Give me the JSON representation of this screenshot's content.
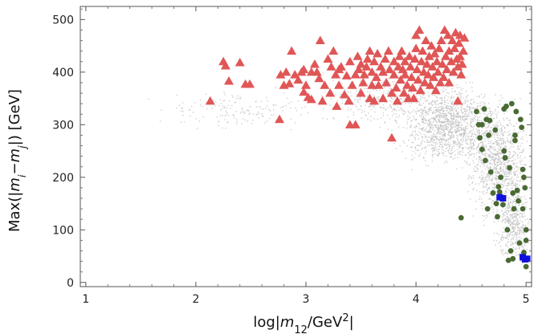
{
  "chart_data": {
    "type": "scatter",
    "xlabel": "log|m12/GeV2|",
    "ylabel": "Max(|mi−mj|) [GeV]",
    "xlim": [
      0.95,
      5.05
    ],
    "ylim": [
      -8,
      525
    ],
    "x_ticks": [
      1,
      2,
      3,
      4,
      5
    ],
    "y_ticks": [
      0,
      100,
      200,
      300,
      400,
      500
    ],
    "grid": false,
    "legend": "none",
    "background_density": {
      "description_color": "#bdbdbd",
      "regions": [
        {
          "x_center": 4.3,
          "y_center": 300,
          "x_spread": 0.35,
          "y_spread": 60,
          "weight": 0.42
        },
        {
          "x_center": 4.75,
          "y_center": 230,
          "x_spread": 0.22,
          "y_spread": 85,
          "weight": 0.3
        },
        {
          "x_center": 4.88,
          "y_center": 110,
          "x_spread": 0.12,
          "y_spread": 55,
          "weight": 0.13
        },
        {
          "x_center": 3.7,
          "y_center": 350,
          "x_spread": 0.45,
          "y_spread": 40,
          "weight": 0.1
        },
        {
          "x_center": 2.4,
          "y_center": 330,
          "x_spread": 0.6,
          "y_spread": 30,
          "weight": 0.05
        }
      ],
      "count": 3200
    },
    "series": [
      {
        "marker": "triangle",
        "color": "#e05656",
        "points": [
          [
            2.13,
            345
          ],
          [
            2.25,
            420
          ],
          [
            2.27,
            412
          ],
          [
            2.3,
            383
          ],
          [
            2.4,
            418
          ],
          [
            2.45,
            377
          ],
          [
            2.49,
            377
          ],
          [
            2.76,
            310
          ],
          [
            2.77,
            395
          ],
          [
            2.8,
            375
          ],
          [
            2.82,
            400
          ],
          [
            2.85,
            378
          ],
          [
            2.87,
            440
          ],
          [
            2.9,
            395
          ],
          [
            2.93,
            385
          ],
          [
            2.96,
            400
          ],
          [
            2.98,
            405
          ],
          [
            2.98,
            362
          ],
          [
            3.0,
            375
          ],
          [
            3.02,
            352
          ],
          [
            3.05,
            348
          ],
          [
            3.05,
            400
          ],
          [
            3.08,
            415
          ],
          [
            3.1,
            400
          ],
          [
            3.12,
            388
          ],
          [
            3.13,
            460
          ],
          [
            3.15,
            345
          ],
          [
            3.17,
            375
          ],
          [
            3.2,
            425
          ],
          [
            3.22,
            360
          ],
          [
            3.23,
            410
          ],
          [
            3.25,
            440
          ],
          [
            3.27,
            395
          ],
          [
            3.28,
            335
          ],
          [
            3.3,
            375
          ],
          [
            3.3,
            405
          ],
          [
            3.32,
            410
          ],
          [
            3.35,
            357
          ],
          [
            3.37,
            393
          ],
          [
            3.39,
            345
          ],
          [
            3.4,
            420
          ],
          [
            3.4,
            300
          ],
          [
            3.42,
            375
          ],
          [
            3.45,
            395
          ],
          [
            3.45,
            300
          ],
          [
            3.47,
            430
          ],
          [
            3.48,
            405
          ],
          [
            3.5,
            360
          ],
          [
            3.5,
            415
          ],
          [
            3.52,
            380
          ],
          [
            3.53,
            395
          ],
          [
            3.55,
            410
          ],
          [
            3.56,
            425
          ],
          [
            3.58,
            440
          ],
          [
            3.58,
            350
          ],
          [
            3.6,
            375
          ],
          [
            3.6,
            400
          ],
          [
            3.62,
            345
          ],
          [
            3.62,
            420
          ],
          [
            3.64,
            390
          ],
          [
            3.65,
            435
          ],
          [
            3.66,
            375
          ],
          [
            3.68,
            410
          ],
          [
            3.7,
            350
          ],
          [
            3.7,
            400
          ],
          [
            3.72,
            425
          ],
          [
            3.73,
            380
          ],
          [
            3.75,
            440
          ],
          [
            3.76,
            405
          ],
          [
            3.78,
            275
          ],
          [
            3.78,
            360
          ],
          [
            3.8,
            395
          ],
          [
            3.8,
            420
          ],
          [
            3.82,
            370
          ],
          [
            3.83,
            345
          ],
          [
            3.84,
            410
          ],
          [
            3.85,
            430
          ],
          [
            3.86,
            385
          ],
          [
            3.87,
            440
          ],
          [
            3.88,
            405
          ],
          [
            3.89,
            360
          ],
          [
            3.9,
            420
          ],
          [
            3.9,
            395
          ],
          [
            3.92,
            375
          ],
          [
            3.93,
            350
          ],
          [
            3.94,
            430
          ],
          [
            3.95,
            410
          ],
          [
            3.96,
            390
          ],
          [
            3.97,
            370
          ],
          [
            3.98,
            350
          ],
          [
            3.99,
            425
          ],
          [
            4.0,
            470
          ],
          [
            4.0,
            445
          ],
          [
            4.01,
            405
          ],
          [
            4.02,
            385
          ],
          [
            4.03,
            480
          ],
          [
            4.04,
            365
          ],
          [
            4.05,
            420
          ],
          [
            4.06,
            440
          ],
          [
            4.07,
            400
          ],
          [
            4.08,
            380
          ],
          [
            4.09,
            460
          ],
          [
            4.1,
            415
          ],
          [
            4.11,
            395
          ],
          [
            4.12,
            430
          ],
          [
            4.13,
            375
          ],
          [
            4.14,
            450
          ],
          [
            4.15,
            410
          ],
          [
            4.16,
            390
          ],
          [
            4.17,
            435
          ],
          [
            4.18,
            365
          ],
          [
            4.19,
            420
          ],
          [
            4.2,
            400
          ],
          [
            4.21,
            445
          ],
          [
            4.22,
            380
          ],
          [
            4.23,
            460
          ],
          [
            4.24,
            415
          ],
          [
            4.25,
            390
          ],
          [
            4.26,
            480
          ],
          [
            4.27,
            430
          ],
          [
            4.28,
            405
          ],
          [
            4.29,
            470
          ],
          [
            4.3,
            440
          ],
          [
            4.3,
            380
          ],
          [
            4.32,
            420
          ],
          [
            4.33,
            460
          ],
          [
            4.34,
            400
          ],
          [
            4.35,
            445
          ],
          [
            4.36,
            475
          ],
          [
            4.37,
            425
          ],
          [
            4.38,
            410
          ],
          [
            4.38,
            345
          ],
          [
            4.39,
            455
          ],
          [
            4.4,
            430
          ],
          [
            4.4,
            470
          ],
          [
            4.41,
            395
          ],
          [
            4.42,
            415
          ],
          [
            4.43,
            440
          ],
          [
            4.44,
            465
          ]
        ]
      },
      {
        "marker": "circle",
        "color": "#4a6a33",
        "points": [
          [
            4.41,
            123
          ],
          [
            4.55,
            325
          ],
          [
            4.57,
            300
          ],
          [
            4.58,
            275
          ],
          [
            4.6,
            253
          ],
          [
            4.6,
            300
          ],
          [
            4.62,
            330
          ],
          [
            4.63,
            232
          ],
          [
            4.64,
            310
          ],
          [
            4.65,
            140
          ],
          [
            4.66,
            280
          ],
          [
            4.67,
            308
          ],
          [
            4.68,
            210
          ],
          [
            4.7,
            170
          ],
          [
            4.72,
            290
          ],
          [
            4.73,
            150
          ],
          [
            4.74,
            125
          ],
          [
            4.75,
            182
          ],
          [
            4.76,
            172
          ],
          [
            4.77,
            200
          ],
          [
            4.78,
            162
          ],
          [
            4.79,
            148
          ],
          [
            4.8,
            330
          ],
          [
            4.8,
            250
          ],
          [
            4.81,
            237
          ],
          [
            4.82,
            335
          ],
          [
            4.83,
            100
          ],
          [
            4.84,
            42
          ],
          [
            4.85,
            218
          ],
          [
            4.86,
            60
          ],
          [
            4.87,
            340
          ],
          [
            4.88,
            170
          ],
          [
            4.88,
            45
          ],
          [
            4.89,
            140
          ],
          [
            4.9,
            280
          ],
          [
            4.9,
            270
          ],
          [
            4.91,
            325
          ],
          [
            4.92,
            175
          ],
          [
            4.93,
            155
          ],
          [
            4.94,
            75
          ],
          [
            4.95,
            310
          ],
          [
            4.96,
            295
          ],
          [
            4.97,
            215
          ],
          [
            4.97,
            140
          ],
          [
            4.98,
            200
          ],
          [
            4.99,
            180
          ],
          [
            5.0,
            100
          ],
          [
            5.0,
            80
          ],
          [
            5.0,
            30
          ],
          [
            4.98,
            57
          ]
        ]
      },
      {
        "marker": "square",
        "color": "#1010dd",
        "points": [
          [
            4.76,
            162
          ],
          [
            4.79,
            160
          ],
          [
            4.97,
            48
          ],
          [
            5.01,
            45
          ],
          [
            4.99,
            44
          ]
        ]
      }
    ]
  }
}
